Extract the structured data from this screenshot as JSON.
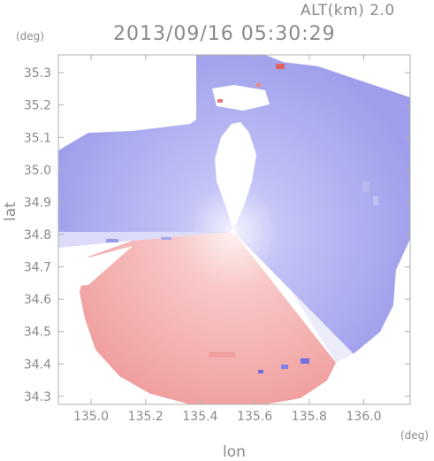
{
  "header": {
    "altitude_label": "ALT(km) 2.0",
    "timestamp": "2013/09/16 05:30:29"
  },
  "axes": {
    "y_unit": "(deg)",
    "x_unit": "(deg)",
    "y_label": "lat",
    "x_label": "lon",
    "y_ticks": [
      "34.3",
      "34.4",
      "34.5",
      "34.6",
      "34.7",
      "34.8",
      "34.9",
      "35.0",
      "35.1",
      "35.2",
      "35.3"
    ],
    "x_ticks": [
      "135.0",
      "135.2",
      "135.4",
      "135.6",
      "135.8",
      "136.0"
    ],
    "x_range": [
      134.88,
      136.17
    ],
    "y_range": [
      34.275,
      35.355
    ]
  },
  "map": {
    "type": "radar doppler velocity PPI",
    "radar_center": {
      "lon": 135.52,
      "lat": 34.82
    },
    "colors": {
      "approaching": "#8c8cf0",
      "receding": "#f08c8c",
      "frame": "#b0b0b0"
    }
  }
}
